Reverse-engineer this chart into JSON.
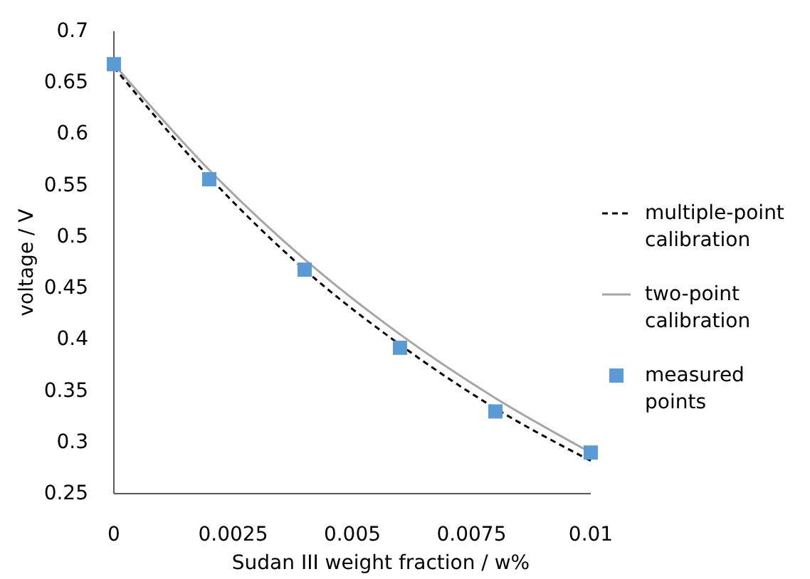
{
  "chart_data": {
    "type": "line",
    "xlabel": "Sudan III weight fraction / w%",
    "ylabel": "voltage / V",
    "x": [
      0,
      0.002,
      0.004,
      0.006,
      0.008,
      0.01
    ],
    "xlim": [
      0,
      0.01
    ],
    "xticks": [
      0,
      0.0025,
      0.005,
      0.0075,
      0.01
    ],
    "ylim": [
      0.25,
      0.7
    ],
    "yticks": [
      0.25,
      0.3,
      0.35,
      0.4,
      0.45,
      0.5,
      0.55,
      0.6,
      0.65,
      0.7
    ],
    "grid": false,
    "legend": "right",
    "series": [
      {
        "name": "multiple-point calibration",
        "color": "#000000",
        "line_style": "dashed",
        "marker": "none",
        "values": [
          0.665,
          0.558,
          0.468,
          0.395,
          0.333,
          0.282
        ]
      },
      {
        "name": "two-point calibration",
        "color": "#a6a6a6",
        "line_style": "solid",
        "marker": "none",
        "values": [
          0.668,
          0.565,
          0.478,
          0.405,
          0.343,
          0.29
        ]
      },
      {
        "name": "measured points",
        "type": "scatter",
        "color": "#5b9bd5",
        "marker": "square",
        "values": [
          0.668,
          0.556,
          0.468,
          0.392,
          0.33,
          0.29
        ]
      }
    ]
  }
}
